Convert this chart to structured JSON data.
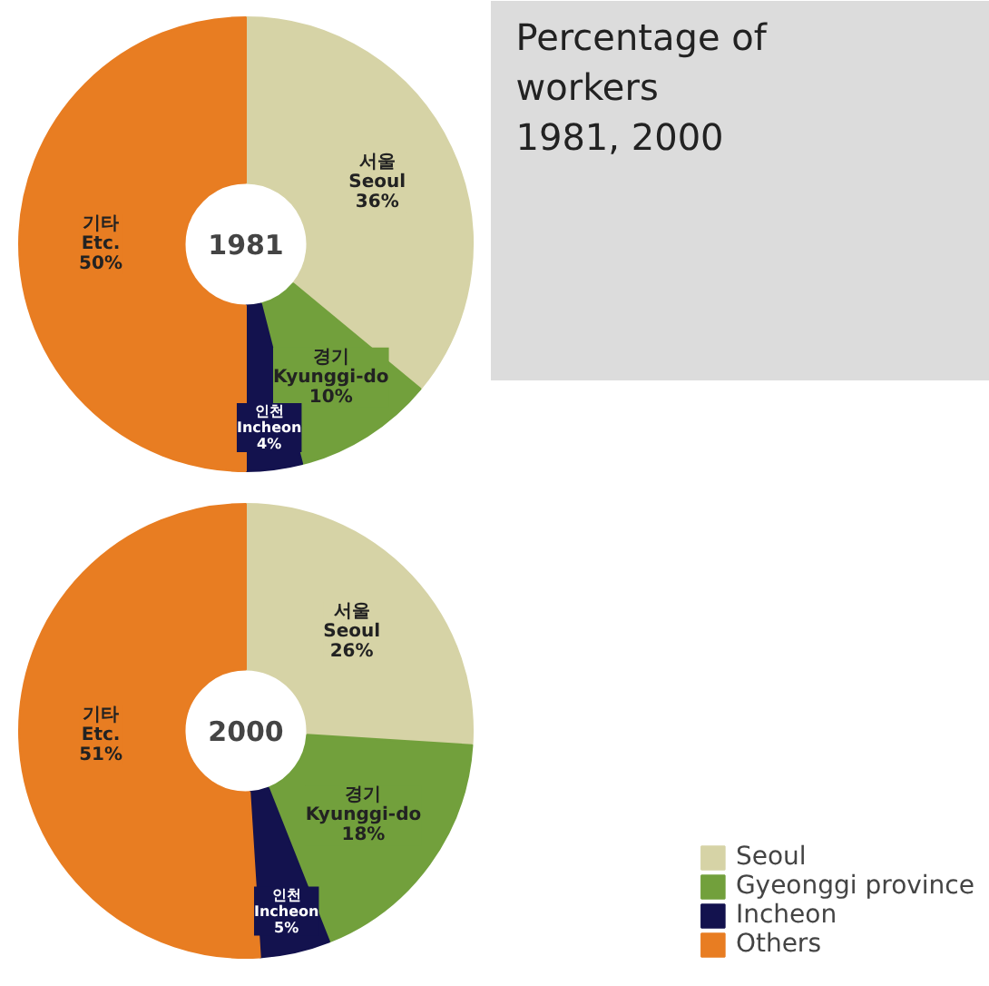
{
  "chart_data": [
    {
      "type": "donut",
      "title": "1981",
      "categories": [
        "서울\nSeoul",
        "경기\nKyunggi-do",
        "인천\nIncheon",
        "기타\nEtc."
      ],
      "values": [
        36,
        10,
        4,
        50
      ],
      "colors": [
        "#d6d3a6",
        "#72a03c",
        "#13124e",
        "#e87d22"
      ],
      "value_labels": [
        "36%",
        "10%",
        "4%",
        "50%"
      ]
    },
    {
      "type": "other",
      "title": "Percentage of\nworkers\n1981, 2000"
    },
    {
      "type": "donut",
      "title": "2000",
      "categories": [
        "Seoul",
        "Gyeonggi province",
        "Incheon",
        "Others"
      ],
      "values": [
        26,
        18,
        5,
        51
      ],
      "colors": [
        "#d6d3a6",
        "#72a03c",
        "#13124e",
        "#e87d22"
      ],
      "value_labels": [
        "서울\nSeoul\n26%",
        "경기\nKyunggi-do\n18%",
        "인천\nIncheon\n5%",
        "기타\nEtc.\n51%"
      ],
      "legend": "bottom right"
    }
  ]
}
